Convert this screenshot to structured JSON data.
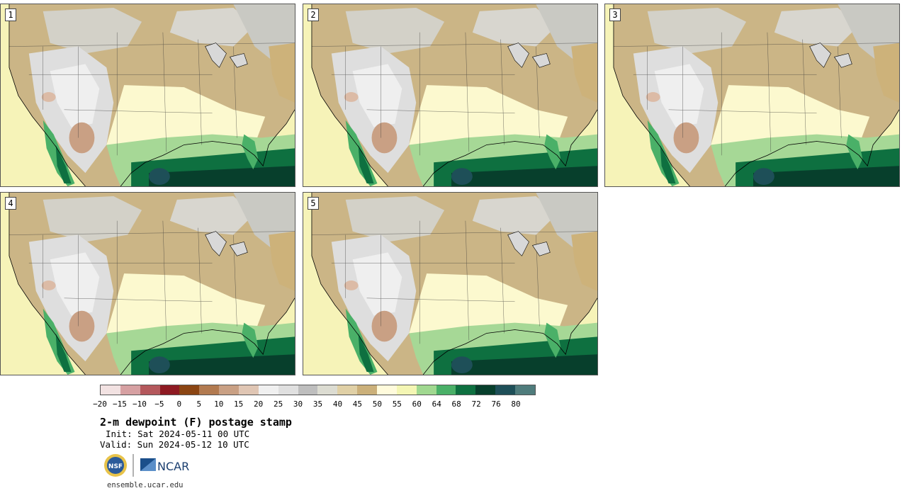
{
  "panels": [
    {
      "label": "1"
    },
    {
      "label": "2"
    },
    {
      "label": "3"
    },
    {
      "label": "4"
    },
    {
      "label": "5"
    }
  ],
  "colorbar": {
    "colors": [
      "#f2e2e2",
      "#d6a0a2",
      "#b4585c",
      "#8e1a22",
      "#8b4513",
      "#b27a50",
      "#c9a084",
      "#e0c6b4",
      "#f0f0f0",
      "#e0e0e0",
      "#bebebe",
      "#dcdcd2",
      "#e0d0a6",
      "#cbb07a",
      "#fffbdc",
      "#f4f6b4",
      "#a0d890",
      "#4ab068",
      "#0e7040",
      "#073f2c",
      "#1e4f58",
      "#4f7c7c"
    ],
    "ticks": [
      "−20",
      "−15",
      "−10",
      "−5",
      "0",
      "5",
      "10",
      "15",
      "20",
      "25",
      "30",
      "35",
      "40",
      "45",
      "50",
      "55",
      "60",
      "64",
      "68",
      "72",
      "76",
      "80"
    ]
  },
  "title": "2-m dewpoint (F) postage stamp",
  "init": "Init: Sat 2024-05-11 00 UTC",
  "valid": "Valid: Sun 2024-05-12 10 UTC",
  "logos": {
    "nsf": "NSF",
    "ncar": "NCAR"
  },
  "url": "ensemble.ucar.edu"
}
